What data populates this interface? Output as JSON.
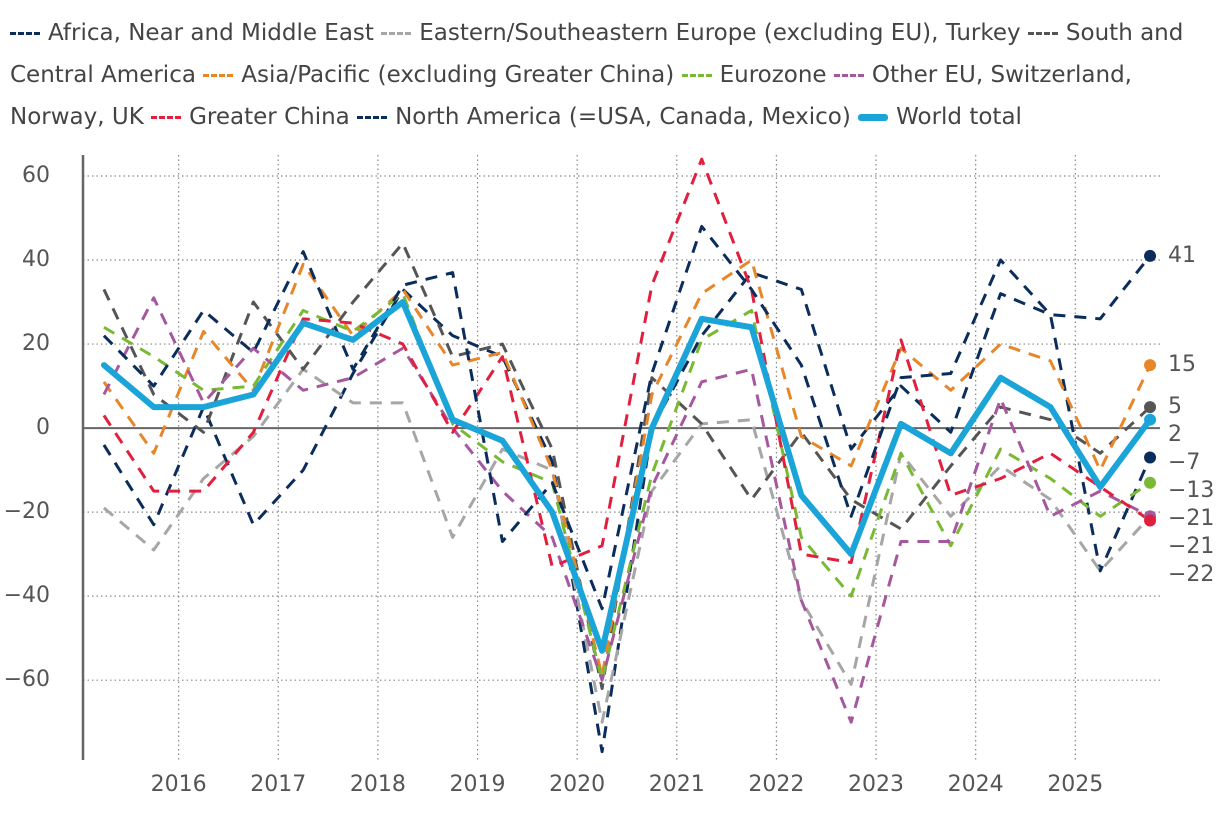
{
  "chart_data": {
    "type": "line",
    "x": [
      2015.25,
      2015.75,
      2016.25,
      2016.75,
      2017.25,
      2017.75,
      2018.25,
      2018.75,
      2019.25,
      2019.75,
      2020.25,
      2020.75,
      2021.25,
      2021.75,
      2022.25,
      2022.75,
      2023.25,
      2023.75,
      2024.25,
      2024.75,
      2025.25,
      2025.75
    ],
    "xlim": [
      2015.04,
      2025.85
    ],
    "xticks": [
      2016,
      2017,
      2018,
      2019,
      2020,
      2021,
      2022,
      2023,
      2024,
      2025
    ],
    "ylim": [
      -79,
      65
    ],
    "yticks": [
      {
        "value": -60,
        "label": "−60"
      },
      {
        "value": -40,
        "label": "−40"
      },
      {
        "value": -20,
        "label": "−20"
      },
      0,
      20,
      40,
      60
    ],
    "grid": true,
    "legend": "top",
    "series": [
      {
        "name": "Africa, Near and Middle East",
        "color": "#0b2d5b",
        "style": "dashed",
        "end_label": "−7",
        "values": [
          -4,
          -23,
          5,
          -23,
          -10,
          13,
          33,
          22,
          17,
          -8,
          -77,
          0,
          22,
          37,
          33,
          -5,
          10,
          -1,
          32,
          27,
          -34,
          -7
        ]
      },
      {
        "name": "Eastern/Southeastern Europe (excluding EU), Turkey",
        "color": "#a6a6a6",
        "style": "dashed",
        "end_label": "−21",
        "values": [
          -19,
          -29,
          -12,
          -2,
          14,
          6,
          6,
          -26,
          -5,
          -10,
          -70,
          -15,
          1,
          2,
          -41,
          -61,
          -6,
          -21,
          -9,
          -17,
          -34,
          -21
        ]
      },
      {
        "name": "South and Central America",
        "color": "#555555",
        "style": "dashed",
        "end_label": "5",
        "values": [
          33,
          8,
          -1,
          30,
          14,
          30,
          44,
          17,
          20,
          -5,
          -62,
          12,
          1,
          -17,
          -1,
          -17,
          -24,
          -9,
          5,
          2,
          -6,
          5
        ]
      },
      {
        "name": "Asia/Pacific (excluding Greater China)",
        "color": "#e8862a",
        "style": "dashed",
        "end_label": "15",
        "values": [
          11,
          -6,
          23,
          9,
          39,
          22,
          33,
          15,
          18,
          -10,
          -59,
          8,
          32,
          40,
          -2,
          -9,
          19,
          9,
          20,
          16,
          -10,
          15
        ]
      },
      {
        "name": "Eurozone",
        "color": "#7ab934",
        "style": "dashed",
        "end_label": "−13",
        "values": [
          24,
          17,
          9,
          10,
          28,
          23,
          32,
          1,
          -8,
          -13,
          -60,
          -11,
          21,
          28,
          -26,
          -40,
          -6,
          -28,
          -5,
          -12,
          -21,
          -13
        ]
      },
      {
        "name": "Other EU, Switzerland, Norway, UK",
        "color": "#a6589f",
        "style": "dashed",
        "end_label": "−21",
        "values": [
          8,
          31,
          6,
          19,
          9,
          12,
          19,
          0,
          -15,
          -26,
          -60,
          -14,
          11,
          14,
          -41,
          -70,
          -27,
          -27,
          7,
          -21,
          -15,
          -21
        ]
      },
      {
        "name": "Greater China",
        "color": "#e0203e",
        "style": "dashed",
        "end_label": "−22",
        "values": [
          3,
          -15,
          -15,
          -1,
          26,
          25,
          20,
          -1,
          17,
          -33,
          -28,
          34,
          64,
          33,
          -30,
          -32,
          21,
          -16,
          -12,
          -6,
          -14,
          -22
        ]
      },
      {
        "name": "North America (=USA, Canada, Mexico)",
        "color": "#0b2d5b",
        "style": "dashed",
        "end_label": "41",
        "values": [
          22,
          10,
          28,
          18,
          42,
          14,
          34,
          37,
          -27,
          -13,
          -43,
          13,
          48,
          33,
          15,
          -21,
          12,
          13,
          40,
          27,
          26,
          41
        ]
      },
      {
        "name": "World total",
        "color": "#1ba4d8",
        "style": "solid",
        "end_label": "2",
        "values": [
          15,
          5,
          5,
          8,
          25,
          21,
          30,
          2,
          -3,
          -20,
          -53,
          0,
          26,
          24,
          -16,
          -30,
          1,
          -6,
          12,
          5,
          -14,
          2
        ]
      }
    ]
  }
}
